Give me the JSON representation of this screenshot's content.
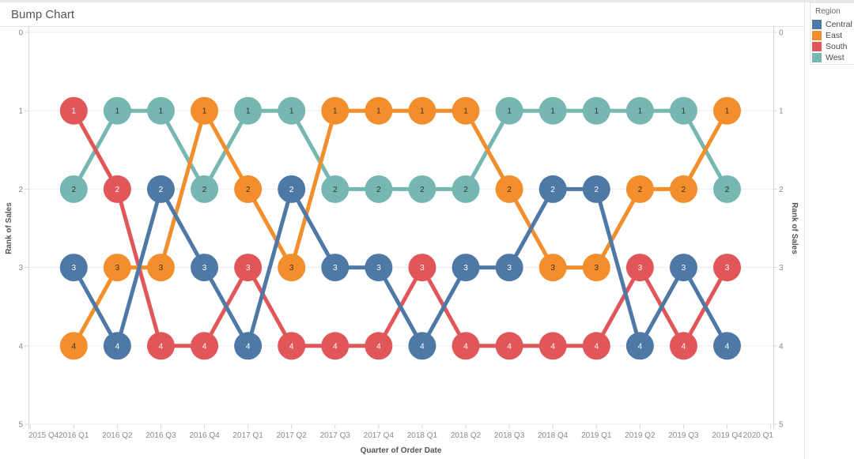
{
  "window": {
    "title": "Bump Chart"
  },
  "legend": {
    "title": "Region",
    "items": [
      {
        "label": "Central",
        "color": "#4e79a7"
      },
      {
        "label": "East",
        "color": "#f28e2b"
      },
      {
        "label": "South",
        "color": "#e15759"
      },
      {
        "label": "West",
        "color": "#76b7b2"
      }
    ]
  },
  "chart_data": {
    "type": "line",
    "subtype": "bump-chart",
    "title": "Bump Chart",
    "xlabel": "Quarter of Order Date",
    "ylabel": "Rank of Sales",
    "ylabel_right": "Rank of Sales",
    "ylim": [
      0,
      5
    ],
    "y_axis_inverted_ranks": true,
    "y_ticks": [
      "0",
      "1",
      "2",
      "3",
      "4",
      "5"
    ],
    "x_axis_ticks": [
      "2015 Q4",
      "2016 Q1",
      "2016 Q2",
      "2016 Q3",
      "2016 Q4",
      "2017 Q1",
      "2017 Q2",
      "2017 Q3",
      "2017 Q4",
      "2018 Q1",
      "2018 Q2",
      "2018 Q3",
      "2018 Q4",
      "2019 Q1",
      "2019 Q2",
      "2019 Q3",
      "2019 Q4",
      "2020 Q1"
    ],
    "categories": [
      "2016 Q1",
      "2016 Q2",
      "2016 Q3",
      "2016 Q4",
      "2017 Q1",
      "2017 Q2",
      "2017 Q3",
      "2017 Q4",
      "2018 Q1",
      "2018 Q2",
      "2018 Q3",
      "2018 Q4",
      "2019 Q1",
      "2019 Q2",
      "2019 Q3",
      "2019 Q4"
    ],
    "series": [
      {
        "name": "Central",
        "color": "#4e79a7",
        "label_color": "#ffffff",
        "values": [
          3,
          4,
          2,
          3,
          4,
          2,
          3,
          3,
          4,
          3,
          3,
          2,
          2,
          4,
          3,
          4
        ]
      },
      {
        "name": "East",
        "color": "#f28e2b",
        "label_color": "#333333",
        "values": [
          4,
          3,
          3,
          1,
          2,
          3,
          1,
          1,
          1,
          1,
          2,
          3,
          3,
          2,
          2,
          1
        ]
      },
      {
        "name": "South",
        "color": "#e15759",
        "label_color": "#ffffff",
        "values": [
          1,
          2,
          4,
          4,
          3,
          4,
          4,
          4,
          3,
          4,
          4,
          4,
          4,
          3,
          4,
          3
        ]
      },
      {
        "name": "West",
        "color": "#76b7b2",
        "label_color": "#333333",
        "values": [
          2,
          1,
          1,
          2,
          1,
          1,
          2,
          2,
          2,
          2,
          1,
          1,
          1,
          1,
          1,
          2
        ]
      }
    ],
    "grid": "horizontal",
    "legend_position": "right",
    "point_labels": "rank-value-inside-circle",
    "style": {
      "grid_color": "#ededed",
      "axis_line_color": "#d7d7d7",
      "tick_label_color": "#8a8a8a",
      "axis_title_color": "#555555"
    }
  }
}
